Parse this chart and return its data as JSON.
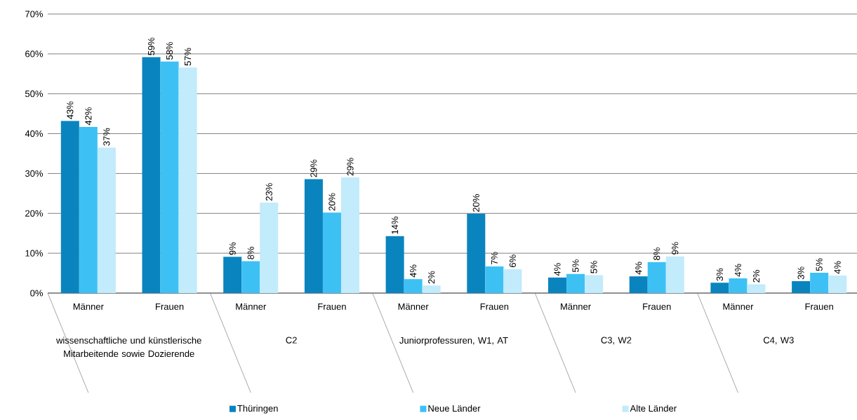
{
  "chart_data": {
    "type": "bar",
    "categories": [
      "Männer",
      "Frauen",
      "Männer",
      "Frauen",
      "Männer",
      "Frauen",
      "Männer",
      "Frauen",
      "Männer",
      "Frauen"
    ],
    "annotations": [
      "wissenschaftliche und künstlerische Mitarbeitende sowie Dozierende",
      "C2",
      "Juniorprofessuren, W1, AT",
      "C3, W2",
      "C4, W3"
    ],
    "series": [
      {
        "name": "Thüringen",
        "color": "#0a84bf",
        "values": [
          43.2,
          59.2,
          9.1,
          28.6,
          14.3,
          19.9,
          3.9,
          4.2,
          2.6,
          3.0
        ],
        "value_labels": [
          "43%",
          "59%",
          "9%",
          "29%",
          "14%",
          "20%",
          "4%",
          "4%",
          "3%",
          "3%"
        ]
      },
      {
        "name": "Neue Länder",
        "color": "#3dc1f5",
        "values": [
          41.7,
          58.1,
          8.0,
          20.2,
          3.5,
          6.7,
          4.8,
          7.8,
          3.7,
          5.1
        ],
        "value_labels": [
          "42%",
          "58%",
          "8%",
          "20%",
          "4%",
          "7%",
          "5%",
          "8%",
          "4%",
          "5%"
        ]
      },
      {
        "name": "Alte Länder",
        "color": "#c2ebfb",
        "values": [
          36.5,
          56.6,
          22.7,
          29.0,
          1.9,
          6.0,
          4.5,
          9.2,
          2.2,
          4.4
        ],
        "value_labels": [
          "37%",
          "57%",
          "23%",
          "29%",
          "2%",
          "6%",
          "5%",
          "9%",
          "2%",
          "4%"
        ]
      }
    ],
    "ylim": [
      0,
      70
    ],
    "yticks": [
      {
        "value": 0,
        "label": "0%"
      },
      {
        "value": 10,
        "label": "10%"
      },
      {
        "value": 20,
        "label": "20%"
      },
      {
        "value": 30,
        "label": "30%"
      },
      {
        "value": 40,
        "label": "40%"
      },
      {
        "value": 50,
        "label": "50%"
      },
      {
        "value": 60,
        "label": "60%"
      },
      {
        "value": 70,
        "label": "70%"
      }
    ],
    "grid": "y",
    "legend": "bottom"
  }
}
